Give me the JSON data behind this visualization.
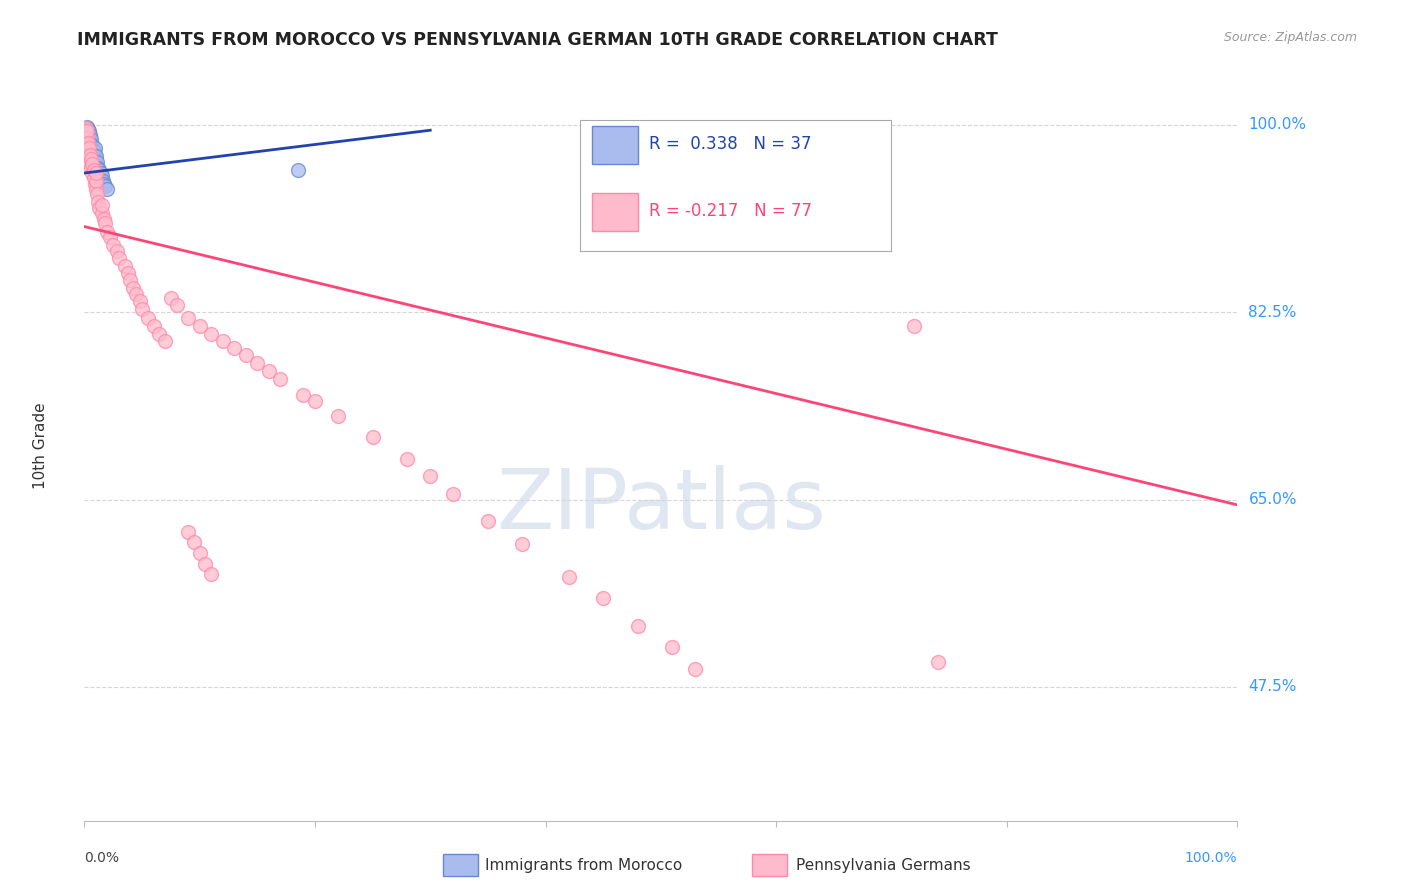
{
  "title": "IMMIGRANTS FROM MOROCCO VS PENNSYLVANIA GERMAN 10TH GRADE CORRELATION CHART",
  "source": "Source: ZipAtlas.com",
  "ylabel": "10th Grade",
  "ytick_labels": [
    "100.0%",
    "82.5%",
    "65.0%",
    "47.5%"
  ],
  "ytick_values": [
    1.0,
    0.825,
    0.65,
    0.475
  ],
  "blue_face_color": "#aabbee",
  "blue_edge_color": "#6688cc",
  "pink_face_color": "#ffbbcc",
  "pink_edge_color": "#ff88aa",
  "blue_line_color": "#2244aa",
  "pink_line_color": "#ff4477",
  "grid_color": "#cccccc",
  "right_label_color": "#3399ff",
  "title_color": "#222222",
  "source_color": "#999999",
  "watermark_color": "#ccd8e8",
  "background_color": "#ffffff",
  "xlim": [
    0.0,
    1.0
  ],
  "ylim": [
    0.35,
    1.05
  ],
  "blue_line": {
    "x0": 0.0,
    "y0": 0.955,
    "x1": 0.3,
    "y1": 0.995
  },
  "pink_line": {
    "x0": 0.0,
    "y0": 0.905,
    "x1": 1.0,
    "y1": 0.645
  },
  "blue_points_x": [
    0.001,
    0.001,
    0.002,
    0.002,
    0.002,
    0.003,
    0.003,
    0.003,
    0.003,
    0.004,
    0.004,
    0.004,
    0.004,
    0.005,
    0.005,
    0.005,
    0.006,
    0.006,
    0.006,
    0.007,
    0.007,
    0.008,
    0.008,
    0.009,
    0.009,
    0.01,
    0.01,
    0.011,
    0.012,
    0.013,
    0.014,
    0.015,
    0.016,
    0.017,
    0.018,
    0.02,
    0.185
  ],
  "blue_points_y": [
    0.99,
    0.995,
    0.985,
    0.992,
    0.998,
    0.98,
    0.988,
    0.993,
    0.996,
    0.975,
    0.982,
    0.988,
    0.994,
    0.978,
    0.984,
    0.991,
    0.972,
    0.979,
    0.987,
    0.974,
    0.981,
    0.968,
    0.976,
    0.97,
    0.978,
    0.963,
    0.971,
    0.965,
    0.96,
    0.958,
    0.955,
    0.952,
    0.948,
    0.945,
    0.943,
    0.94,
    0.958
  ],
  "pink_points_x": [
    0.001,
    0.001,
    0.001,
    0.002,
    0.002,
    0.002,
    0.003,
    0.003,
    0.004,
    0.004,
    0.005,
    0.005,
    0.006,
    0.006,
    0.007,
    0.007,
    0.008,
    0.008,
    0.009,
    0.01,
    0.01,
    0.01,
    0.011,
    0.012,
    0.013,
    0.015,
    0.015,
    0.017,
    0.018,
    0.02,
    0.022,
    0.025,
    0.028,
    0.03,
    0.035,
    0.038,
    0.04,
    0.042,
    0.045,
    0.048,
    0.05,
    0.055,
    0.06,
    0.065,
    0.07,
    0.075,
    0.08,
    0.09,
    0.1,
    0.11,
    0.12,
    0.13,
    0.14,
    0.15,
    0.16,
    0.17,
    0.19,
    0.2,
    0.22,
    0.25,
    0.28,
    0.3,
    0.32,
    0.35,
    0.38,
    0.42,
    0.45,
    0.48,
    0.51,
    0.53,
    0.72,
    0.74,
    0.09,
    0.095,
    0.1,
    0.105,
    0.11
  ],
  "pink_points_y": [
    0.985,
    0.992,
    0.997,
    0.98,
    0.988,
    0.994,
    0.975,
    0.983,
    0.97,
    0.978,
    0.965,
    0.972,
    0.96,
    0.968,
    0.955,
    0.963,
    0.95,
    0.958,
    0.945,
    0.94,
    0.948,
    0.955,
    0.935,
    0.928,
    0.922,
    0.918,
    0.925,
    0.912,
    0.908,
    0.9,
    0.895,
    0.888,
    0.882,
    0.876,
    0.868,
    0.862,
    0.855,
    0.848,
    0.842,
    0.835,
    0.828,
    0.82,
    0.812,
    0.805,
    0.798,
    0.838,
    0.832,
    0.82,
    0.812,
    0.805,
    0.798,
    0.792,
    0.785,
    0.778,
    0.77,
    0.763,
    0.748,
    0.742,
    0.728,
    0.708,
    0.688,
    0.672,
    0.655,
    0.63,
    0.608,
    0.578,
    0.558,
    0.532,
    0.512,
    0.492,
    0.812,
    0.498,
    0.62,
    0.61,
    0.6,
    0.59,
    0.58
  ]
}
